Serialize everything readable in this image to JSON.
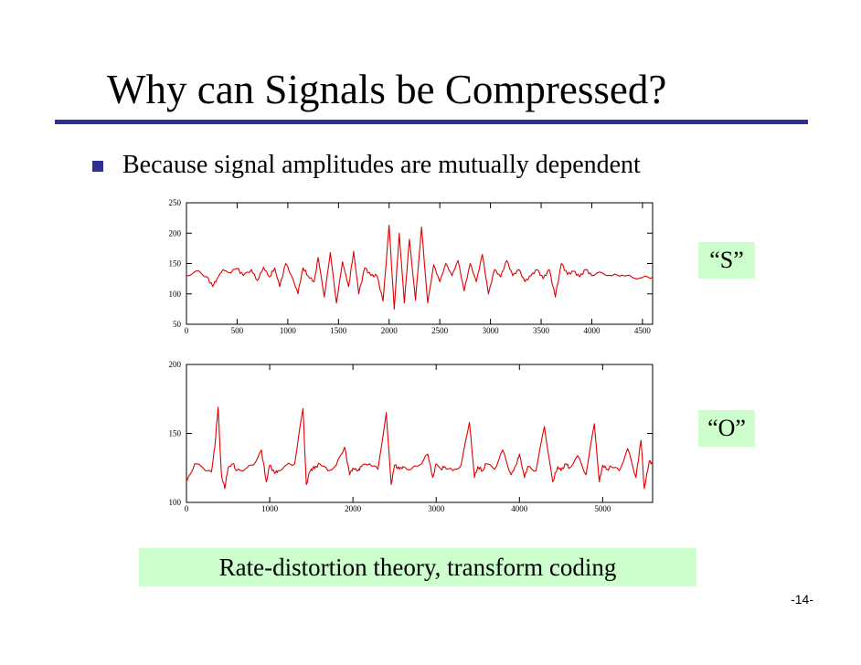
{
  "slide": {
    "title": "Why can Signals be Compressed?",
    "bullet": "Because signal amplitudes are mutually dependent",
    "label_s": "“S”",
    "label_o": "“O”",
    "bottom_text": "Rate-distortion theory, transform coding",
    "page_number": "-14-"
  },
  "colors": {
    "accent": "#2e3192",
    "signal": "#e00000",
    "highlight": "#ccffcc"
  },
  "chart_data": [
    {
      "type": "line",
      "title": "",
      "xlabel": "",
      "ylabel": "",
      "xlim": [
        0,
        4600
      ],
      "ylim": [
        50,
        250
      ],
      "xticks": [
        0,
        500,
        1000,
        1500,
        2000,
        2500,
        3000,
        3500,
        4000,
        4500
      ],
      "yticks": [
        50,
        100,
        150,
        200,
        250
      ],
      "grid": false,
      "series": [
        {
          "x": [
            0,
            100,
            200,
            260,
            300,
            360,
            420,
            500,
            560,
            640,
            700,
            760,
            820,
            870,
            920,
            980,
            1050,
            1100,
            1150,
            1200,
            1260,
            1300,
            1360,
            1420,
            1480,
            1540,
            1600,
            1650,
            1700,
            1760,
            1820,
            1880,
            1940,
            2000,
            2050,
            2100,
            2150,
            2200,
            2260,
            2320,
            2380,
            2440,
            2500,
            2560,
            2620,
            2680,
            2740,
            2800,
            2860,
            2920,
            2980,
            3040,
            3100,
            3160,
            3220,
            3280,
            3340,
            3400,
            3460,
            3520,
            3580,
            3640,
            3700,
            3760,
            3820,
            3880,
            3940,
            4000,
            4100,
            4200,
            4300,
            4400,
            4500,
            4600
          ],
          "values": [
            130,
            138,
            128,
            112,
            125,
            140,
            135,
            142,
            130,
            140,
            122,
            144,
            128,
            143,
            112,
            150,
            125,
            100,
            143,
            130,
            120,
            160,
            95,
            168,
            85,
            153,
            112,
            170,
            100,
            143,
            130,
            130,
            88,
            213,
            75,
            200,
            85,
            190,
            90,
            210,
            85,
            148,
            120,
            150,
            130,
            155,
            105,
            150,
            120,
            165,
            100,
            140,
            128,
            155,
            130,
            140,
            120,
            130,
            140,
            125,
            140,
            95,
            150,
            132,
            137,
            128,
            140,
            130,
            135,
            130,
            131,
            127,
            127,
            127
          ]
        }
      ]
    },
    {
      "type": "line",
      "title": "",
      "xlabel": "",
      "ylabel": "",
      "xlim": [
        0,
        5600
      ],
      "ylim": [
        100,
        200
      ],
      "xticks": [
        0,
        1000,
        2000,
        3000,
        4000,
        5000
      ],
      "yticks": [
        100,
        150,
        200
      ],
      "grid": false,
      "series": [
        {
          "x": [
            0,
            100,
            200,
            300,
            340,
            380,
            420,
            460,
            500,
            560,
            600,
            700,
            800,
            900,
            960,
            1000,
            1060,
            1100,
            1200,
            1300,
            1400,
            1440,
            1480,
            1520,
            1560,
            1600,
            1700,
            1800,
            1900,
            1960,
            2000,
            2060,
            2100,
            2200,
            2300,
            2400,
            2460,
            2500,
            2560,
            2600,
            2700,
            2800,
            2900,
            2960,
            3000,
            3060,
            3100,
            3200,
            3300,
            3400,
            3460,
            3500,
            3560,
            3600,
            3700,
            3800,
            3900,
            3960,
            4000,
            4060,
            4100,
            4200,
            4300,
            4400,
            4460,
            4500,
            4560,
            4600,
            4700,
            4800,
            4900,
            4960,
            5000,
            5060,
            5100,
            5200,
            5300,
            5400,
            5460,
            5500,
            5560,
            5600
          ],
          "values": [
            115,
            128,
            125,
            122,
            140,
            169,
            120,
            110,
            125,
            128,
            123,
            124,
            127,
            138,
            115,
            127,
            121,
            123,
            127,
            128,
            168,
            113,
            122,
            125,
            126,
            128,
            123,
            127,
            140,
            120,
            125,
            123,
            126,
            128,
            124,
            165,
            113,
            127,
            124,
            126,
            124,
            127,
            135,
            118,
            128,
            124,
            126,
            123,
            127,
            158,
            118,
            126,
            123,
            128,
            124,
            138,
            120,
            127,
            135,
            118,
            126,
            123,
            155,
            115,
            126,
            123,
            128,
            125,
            134,
            120,
            157,
            115,
            127,
            124,
            126,
            123,
            139,
            118,
            145,
            110,
            130,
            128
          ]
        }
      ]
    }
  ]
}
